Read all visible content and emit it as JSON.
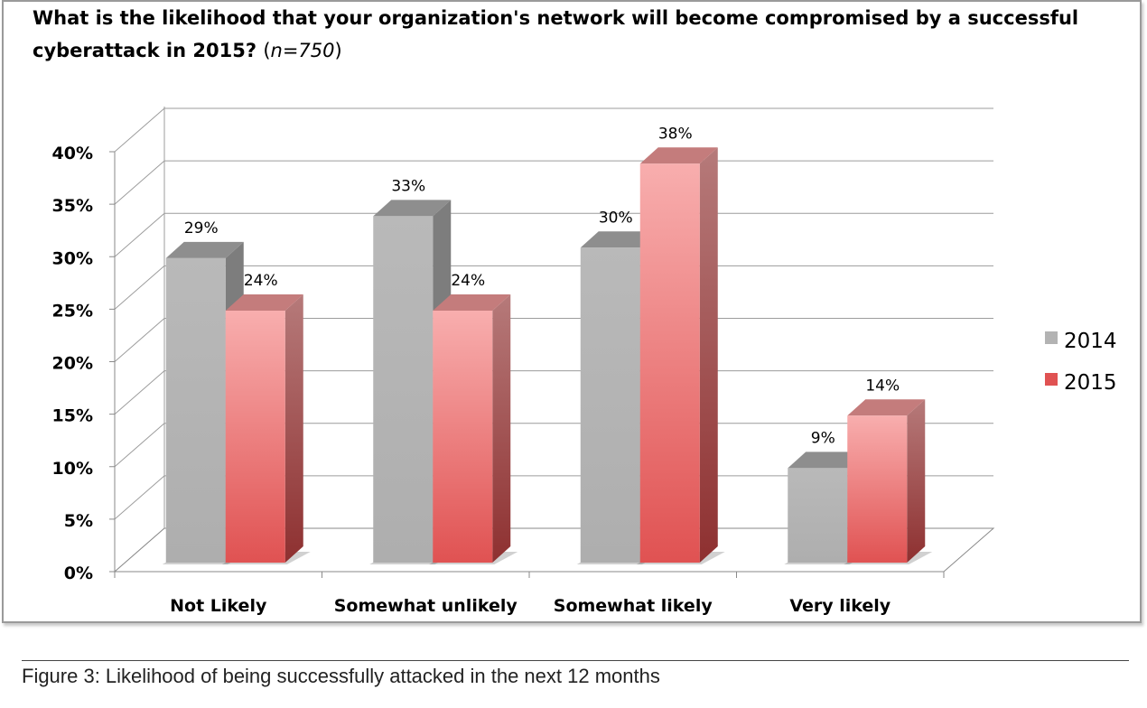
{
  "chart_data": {
    "type": "bar",
    "title": "What is the likelihood that your organization's network will become compromised by a successful cyberattack in 2015?",
    "subtitle": "n=750",
    "categories": [
      "Not Likely",
      "Somewhat unlikely",
      "Somewhat likely",
      "Very likely"
    ],
    "series": [
      {
        "name": "2014",
        "values": [
          29,
          33,
          30,
          9
        ],
        "labels": [
          "29%",
          "33%",
          "30%",
          "9%"
        ],
        "color": "#b3b3b3"
      },
      {
        "name": "2015",
        "values": [
          24,
          24,
          38,
          14
        ],
        "labels": [
          "24%",
          "24%",
          "38%",
          "14%"
        ],
        "color": "#e05050"
      }
    ],
    "ylim": [
      0,
      40
    ],
    "yticks": [
      "0%",
      "5%",
      "10%",
      "15%",
      "20%",
      "25%",
      "30%",
      "35%",
      "40%"
    ],
    "grid": true,
    "legend": "right",
    "style": "3d"
  },
  "caption": "Figure 3: Likelihood of being successfully attacked in the next 12 months"
}
